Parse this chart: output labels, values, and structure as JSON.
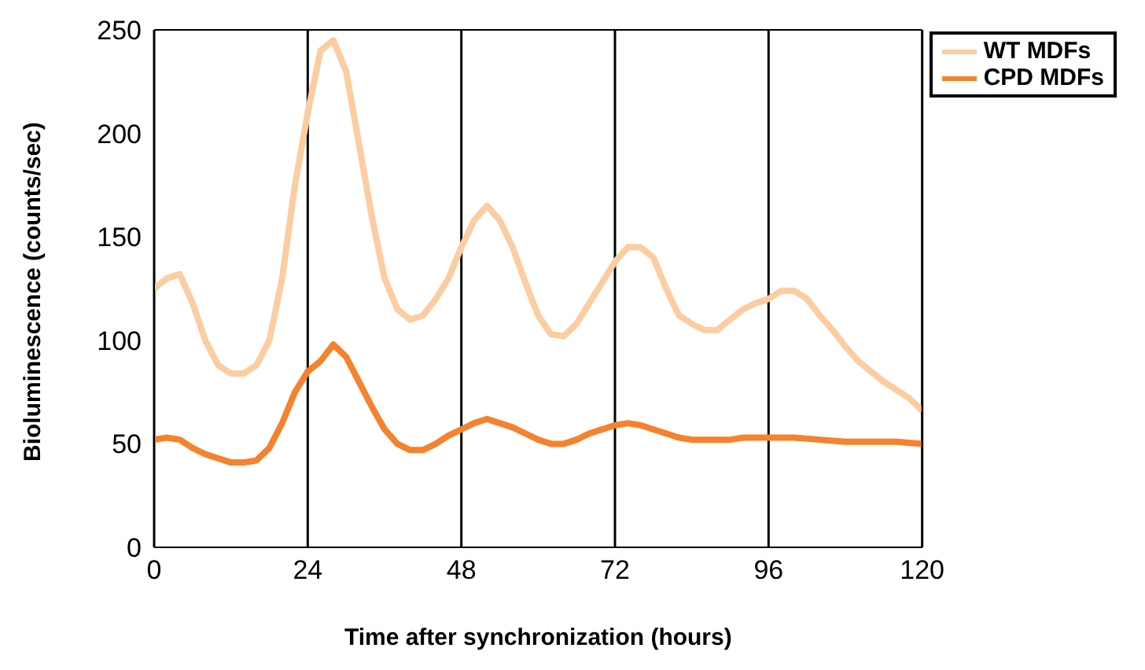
{
  "chart_data": {
    "type": "line",
    "xlabel": "Time after synchronization (hours)",
    "ylabel": "Bioluminescence (counts/sec)",
    "xlim": [
      0,
      120
    ],
    "xticks": [
      0,
      24,
      48,
      72,
      96,
      120
    ],
    "ylim": [
      0,
      250
    ],
    "yticks": [
      0,
      50,
      100,
      150,
      200,
      250
    ],
    "grid": "x",
    "legend": "top right",
    "marker": "none",
    "line_style": "solid",
    "series": [
      {
        "name": "WT MDFs",
        "color": "#fccda0",
        "x": [
          0,
          2,
          4,
          6,
          8,
          10,
          12,
          14,
          16,
          18,
          20,
          22,
          24,
          26,
          28,
          30,
          32,
          34,
          36,
          38,
          40,
          42,
          44,
          46,
          48,
          50,
          52,
          54,
          56,
          58,
          60,
          62,
          64,
          66,
          68,
          70,
          72,
          74,
          76,
          78,
          80,
          82,
          84,
          86,
          88,
          90,
          92,
          94,
          96,
          98,
          100,
          102,
          104,
          106,
          108,
          110,
          112,
          114,
          116,
          118,
          120
        ],
        "values": [
          125,
          130,
          132,
          118,
          100,
          88,
          84,
          84,
          88,
          100,
          130,
          175,
          210,
          240,
          245,
          230,
          195,
          160,
          130,
          115,
          110,
          112,
          120,
          130,
          145,
          158,
          165,
          158,
          145,
          128,
          112,
          103,
          102,
          108,
          118,
          128,
          138,
          145,
          145,
          140,
          125,
          112,
          108,
          105,
          105,
          110,
          115,
          118,
          120,
          124,
          124,
          120,
          112,
          105,
          97,
          90,
          85,
          80,
          76,
          72,
          66
        ]
      },
      {
        "name": "CPD MDFs",
        "color": "#f5822e",
        "x": [
          0,
          2,
          4,
          6,
          8,
          10,
          12,
          14,
          16,
          18,
          20,
          22,
          24,
          26,
          28,
          30,
          32,
          34,
          36,
          38,
          40,
          42,
          44,
          46,
          48,
          50,
          52,
          54,
          56,
          58,
          60,
          62,
          64,
          66,
          68,
          70,
          72,
          74,
          76,
          78,
          80,
          82,
          84,
          86,
          88,
          90,
          92,
          94,
          96,
          100,
          104,
          108,
          112,
          116,
          120
        ],
        "values": [
          52,
          53,
          52,
          48,
          45,
          43,
          41,
          41,
          42,
          48,
          60,
          75,
          85,
          90,
          98,
          92,
          80,
          68,
          57,
          50,
          47,
          47,
          50,
          54,
          57,
          60,
          62,
          60,
          58,
          55,
          52,
          50,
          50,
          52,
          55,
          57,
          59,
          60,
          59,
          57,
          55,
          53,
          52,
          52,
          52,
          52,
          53,
          53,
          53,
          53,
          52,
          51,
          51,
          51,
          50
        ]
      }
    ]
  }
}
